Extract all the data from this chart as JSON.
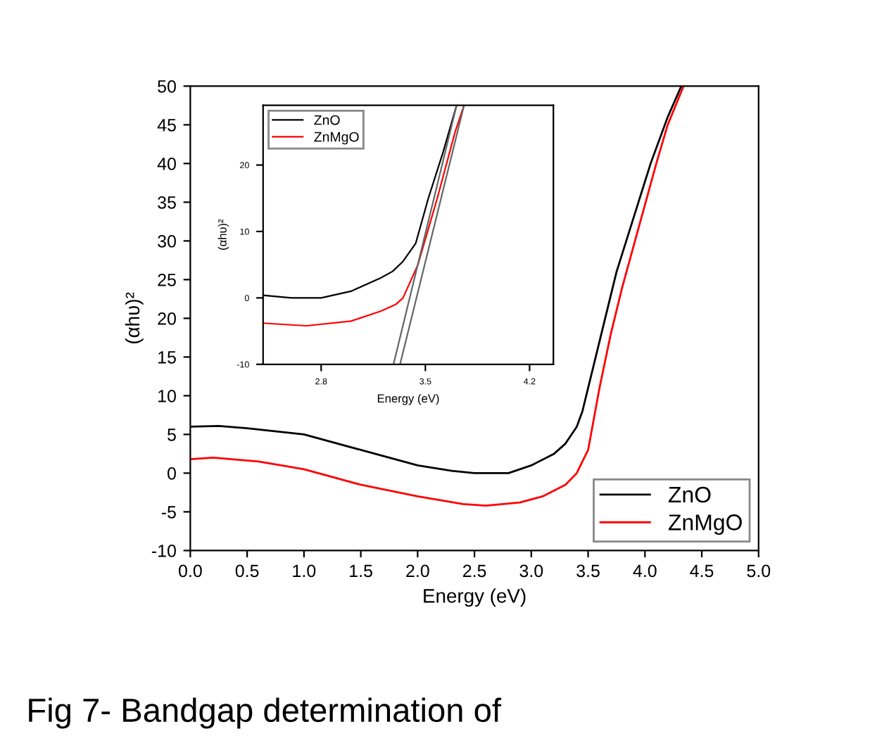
{
  "chart_data": [
    {
      "type": "line",
      "xlabel": "Energy (eV)",
      "ylabel": "(αhυ)²",
      "xlim": [
        0,
        5
      ],
      "ylim": [
        -10,
        50
      ],
      "xticks": [
        {
          "value": 0,
          "label": "0.0"
        },
        {
          "value": 0.5,
          "label": "0.5"
        },
        {
          "value": 1,
          "label": "1.0"
        },
        {
          "value": 1.5,
          "label": "1.5"
        },
        {
          "value": 2,
          "label": "2.0"
        },
        {
          "value": 2.5,
          "label": "2.5"
        },
        {
          "value": 3,
          "label": "3.0"
        },
        {
          "value": 3.5,
          "label": "3.5"
        },
        {
          "value": 4,
          "label": "4.0"
        },
        {
          "value": 4.5,
          "label": "4.5"
        },
        {
          "value": 5,
          "label": "5.0"
        }
      ],
      "yticks": [
        -10,
        -5,
        0,
        5,
        10,
        15,
        20,
        25,
        30,
        35,
        40,
        45,
        50
      ],
      "legend": "bottom right",
      "grid": false,
      "series": [
        {
          "name": "ZnO",
          "color": "#000000",
          "x": [
            0,
            0.25,
            0.5,
            1.0,
            1.5,
            2.0,
            2.3,
            2.5,
            2.8,
            3.0,
            3.2,
            3.3,
            3.4,
            3.45,
            3.5,
            3.6,
            3.65,
            3.75,
            3.9,
            4.05,
            4.2,
            4.32
          ],
          "values": [
            6,
            6.1,
            5.8,
            5,
            3,
            1,
            0.3,
            0,
            0,
            1,
            2.5,
            3.8,
            6,
            8,
            11,
            17,
            20,
            26,
            33,
            40,
            46,
            50
          ]
        },
        {
          "name": "ZnMgO",
          "color": "#ff0000",
          "x": [
            0,
            0.2,
            0.6,
            1.0,
            1.5,
            2.0,
            2.4,
            2.6,
            2.9,
            3.1,
            3.3,
            3.4,
            3.45,
            3.5,
            3.55,
            3.6,
            3.7,
            3.8,
            3.95,
            4.1,
            4.2,
            4.34
          ],
          "values": [
            1.8,
            2,
            1.5,
            0.5,
            -1.5,
            -3,
            -4,
            -4.2,
            -3.8,
            -3,
            -1.5,
            0,
            1.5,
            3,
            7,
            11,
            18,
            24,
            32,
            40,
            45,
            50
          ]
        }
      ],
      "annotations": [
        "Fig 7- Bandgap determination of"
      ]
    },
    {
      "type": "line",
      "xlabel": "Energy (eV)",
      "ylabel": "(αhυ)²",
      "xlim": [
        2.41,
        4.36
      ],
      "ylim": [
        -10,
        29
      ],
      "xticks": [
        2.8,
        3.5,
        4.2
      ],
      "yticks": [
        -10,
        0,
        10,
        20
      ],
      "legend": "top left",
      "grid": false,
      "series": [
        {
          "name": "ZnO",
          "color": "#000000",
          "x": [
            2.41,
            2.6,
            2.8,
            3.0,
            3.2,
            3.28,
            3.35,
            3.435,
            3.52,
            3.62,
            3.71
          ],
          "values": [
            0.4,
            0,
            0,
            1,
            3,
            4,
            5.5,
            8.2,
            15,
            22,
            29
          ]
        },
        {
          "name": "ZnMgO",
          "color": "#ff0000",
          "x": [
            2.41,
            2.7,
            3.0,
            3.2,
            3.3,
            3.35,
            3.45,
            3.58,
            3.7,
            3.76
          ],
          "values": [
            -3.8,
            -4.2,
            -3.5,
            -2,
            -1,
            0,
            5,
            15,
            25,
            29
          ]
        },
        {
          "color": "#666666",
          "x": [
            3.286,
            3.71
          ],
          "values": [
            -10,
            29
          ]
        },
        {
          "color": "#666666",
          "x": [
            3.33,
            3.76
          ],
          "values": [
            -10,
            29
          ]
        }
      ]
    }
  ]
}
